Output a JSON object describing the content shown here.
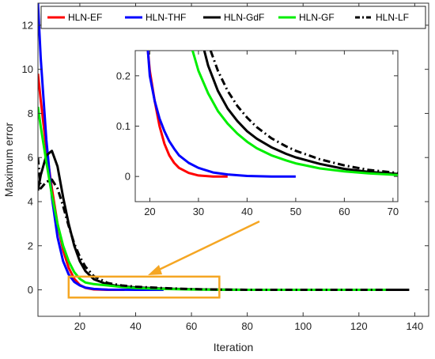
{
  "chart_data": [
    {
      "type": "line",
      "xlabel": "Iteration",
      "ylabel": "Maximum error",
      "xlim": [
        5,
        145
      ],
      "ylim": [
        -1.2,
        13
      ],
      "xticks": [
        "20",
        "40",
        "60",
        "80",
        "100",
        "120",
        "140"
      ],
      "yticks": [
        "0",
        "2",
        "4",
        "6",
        "8",
        "10",
        "12"
      ],
      "grid": false,
      "legend_position": "top",
      "series": [
        {
          "name": "HLN-EF",
          "color": "#ff0000",
          "dash": "solid",
          "x": [
            5,
            6,
            8,
            10,
            12,
            14,
            16,
            18,
            20,
            22,
            25,
            30,
            36
          ],
          "y": [
            9.8,
            8.6,
            6.4,
            4.6,
            3.0,
            1.8,
            1.0,
            0.5,
            0.22,
            0.09,
            0.02,
            0.0,
            0.0
          ]
        },
        {
          "name": "HLN-THF",
          "color": "#0000ff",
          "dash": "solid",
          "x": [
            5,
            6,
            8,
            10,
            12,
            14,
            16,
            18,
            20,
            22,
            25,
            30,
            40,
            50
          ],
          "y": [
            13.0,
            10.5,
            6.8,
            4.2,
            2.4,
            1.3,
            0.7,
            0.36,
            0.2,
            0.1,
            0.04,
            0.01,
            0.0,
            0.0
          ]
        },
        {
          "name": "HLN-GdF",
          "color": "#000000",
          "dash": "solid",
          "x": [
            5,
            6,
            8,
            10,
            12,
            14,
            16,
            18,
            20,
            22,
            25,
            30,
            35,
            40,
            50,
            60,
            70,
            80,
            100,
            138
          ],
          "y": [
            4.5,
            5.2,
            6.1,
            6.3,
            5.6,
            4.2,
            3.0,
            2.0,
            1.3,
            0.85,
            0.48,
            0.24,
            0.16,
            0.11,
            0.055,
            0.025,
            0.01,
            0.0,
            0.0,
            0.0
          ]
        },
        {
          "name": "HLN-GF",
          "color": "#00ee00",
          "dash": "solid",
          "x": [
            5,
            6,
            8,
            10,
            12,
            14,
            16,
            18,
            20,
            22,
            25,
            30,
            35,
            40,
            50,
            60,
            70,
            80,
            100,
            130
          ],
          "y": [
            8.3,
            7.4,
            5.8,
            4.3,
            3.0,
            2.0,
            1.3,
            0.8,
            0.5,
            0.33,
            0.26,
            0.2,
            0.13,
            0.08,
            0.04,
            0.015,
            0.005,
            0.0,
            0.0,
            0.0
          ]
        },
        {
          "name": "HLN-LF",
          "color": "#000000",
          "dash": "dashdot",
          "x": [
            5,
            6,
            8,
            10,
            12,
            14,
            16,
            18,
            20,
            22,
            25,
            30,
            35,
            40,
            50,
            60,
            70,
            80,
            100,
            138
          ],
          "y": [
            6.0,
            4.6,
            4.9,
            5.0,
            4.6,
            3.8,
            2.9,
            2.1,
            1.5,
            1.05,
            0.62,
            0.31,
            0.2,
            0.14,
            0.08,
            0.035,
            0.012,
            0.0,
            0.0,
            0.0
          ]
        }
      ],
      "annotation": {
        "type": "zoom-box",
        "x_range": [
          16,
          70
        ],
        "y_range": [
          -0.35,
          0.6
        ],
        "color": "#f5a623"
      }
    },
    {
      "type": "line",
      "role": "inset",
      "xlabel": "",
      "ylabel": "",
      "xlim": [
        17,
        71
      ],
      "ylim": [
        -0.05,
        0.25
      ],
      "xticks": [
        "20",
        "30",
        "40",
        "50",
        "60",
        "70"
      ],
      "yticks": [
        "0",
        "0.1",
        "0.2"
      ],
      "grid": false,
      "series": [
        {
          "name": "HLN-EF",
          "color": "#ff0000",
          "dash": "solid",
          "x": [
            19.6,
            20,
            21,
            22,
            23,
            24,
            25,
            26,
            28,
            30,
            33,
            36
          ],
          "y": [
            0.25,
            0.21,
            0.15,
            0.1,
            0.065,
            0.042,
            0.027,
            0.017,
            0.007,
            0.002,
            0.0,
            0.0
          ]
        },
        {
          "name": "HLN-THF",
          "color": "#0000ff",
          "dash": "solid",
          "x": [
            19.6,
            20,
            21,
            22,
            23,
            24,
            25,
            26,
            28,
            30,
            33,
            36,
            40,
            45,
            50
          ],
          "y": [
            0.25,
            0.2,
            0.15,
            0.115,
            0.09,
            0.07,
            0.055,
            0.042,
            0.027,
            0.017,
            0.008,
            0.004,
            0.001,
            0.0,
            0.0
          ]
        },
        {
          "name": "HLN-GdF",
          "color": "#000000",
          "dash": "solid",
          "x": [
            31.2,
            32,
            34,
            36,
            38,
            40,
            42,
            45,
            48,
            50,
            55,
            60,
            65,
            71
          ],
          "y": [
            0.25,
            0.22,
            0.17,
            0.135,
            0.11,
            0.09,
            0.075,
            0.058,
            0.045,
            0.038,
            0.025,
            0.015,
            0.009,
            0.005
          ]
        },
        {
          "name": "HLN-GF",
          "color": "#00ee00",
          "dash": "solid",
          "x": [
            28.8,
            30,
            32,
            34,
            36,
            38,
            40,
            42,
            45,
            48,
            50,
            55,
            60,
            65,
            71
          ],
          "y": [
            0.25,
            0.21,
            0.165,
            0.13,
            0.105,
            0.085,
            0.069,
            0.056,
            0.042,
            0.032,
            0.026,
            0.016,
            0.01,
            0.006,
            0.003
          ]
        },
        {
          "name": "HLN-LF",
          "color": "#000000",
          "dash": "dashdot",
          "x": [
            32.5,
            34,
            36,
            38,
            40,
            42,
            45,
            48,
            50,
            55,
            60,
            65,
            71
          ],
          "y": [
            0.25,
            0.21,
            0.17,
            0.14,
            0.117,
            0.098,
            0.076,
            0.06,
            0.051,
            0.034,
            0.022,
            0.013,
            0.007
          ]
        }
      ]
    }
  ]
}
